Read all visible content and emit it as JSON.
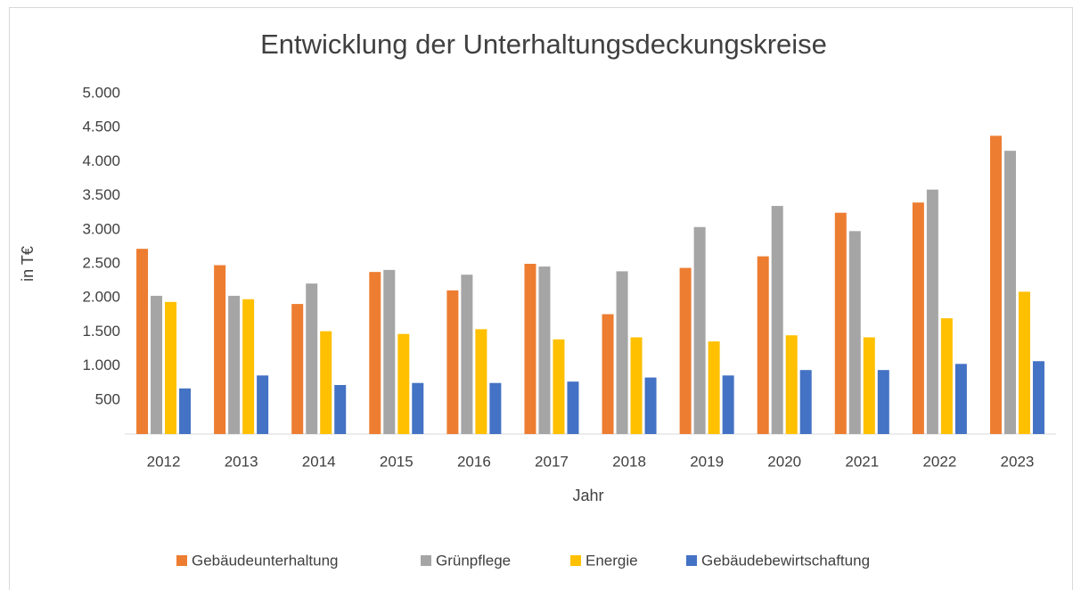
{
  "chart_data": {
    "type": "bar",
    "title": "Entwicklung der Unterhaltungsdeckungskreise",
    "x_label": "Jahr",
    "y_label": "in T€",
    "categories": [
      "2012",
      "2013",
      "2014",
      "2015",
      "2016",
      "2017",
      "2018",
      "2019",
      "2020",
      "2021",
      "2022",
      "2023"
    ],
    "series": [
      {
        "name": "Gebäudeunterhaltung",
        "color": "#ed7d31",
        "values": [
          2720,
          2480,
          1910,
          2380,
          2110,
          2500,
          1760,
          2440,
          2610,
          3250,
          3400,
          4380
        ]
      },
      {
        "name": "Grünpflege",
        "color": "#a5a5a5",
        "values": [
          2030,
          2030,
          2210,
          2410,
          2340,
          2460,
          2390,
          3040,
          3350,
          2980,
          3590,
          4160
        ]
      },
      {
        "name": "Energie",
        "color": "#ffc000",
        "values": [
          1940,
          1980,
          1510,
          1470,
          1540,
          1390,
          1420,
          1360,
          1450,
          1420,
          1700,
          2090
        ]
      },
      {
        "name": "Gebäudebewirtschaftung",
        "color": "#4472c4",
        "values": [
          670,
          860,
          720,
          750,
          750,
          770,
          830,
          860,
          940,
          940,
          1030,
          1070
        ]
      }
    ],
    "ylim": [
      0,
      5000
    ],
    "yticks": [
      500,
      {
        "value": 1000,
        "label": "1.000"
      },
      {
        "value": 1500,
        "label": "1.500"
      },
      {
        "value": 2000,
        "label": "2.000"
      },
      {
        "value": 2500,
        "label": "2.500"
      },
      {
        "value": 3000,
        "label": "3.000"
      },
      {
        "value": 3500,
        "label": "3.500"
      },
      {
        "value": 4000,
        "label": "4.000"
      },
      {
        "value": 4500,
        "label": "4.500"
      },
      {
        "value": 5000,
        "label": "5.000"
      }
    ],
    "grid": false,
    "legend": "bottom"
  }
}
